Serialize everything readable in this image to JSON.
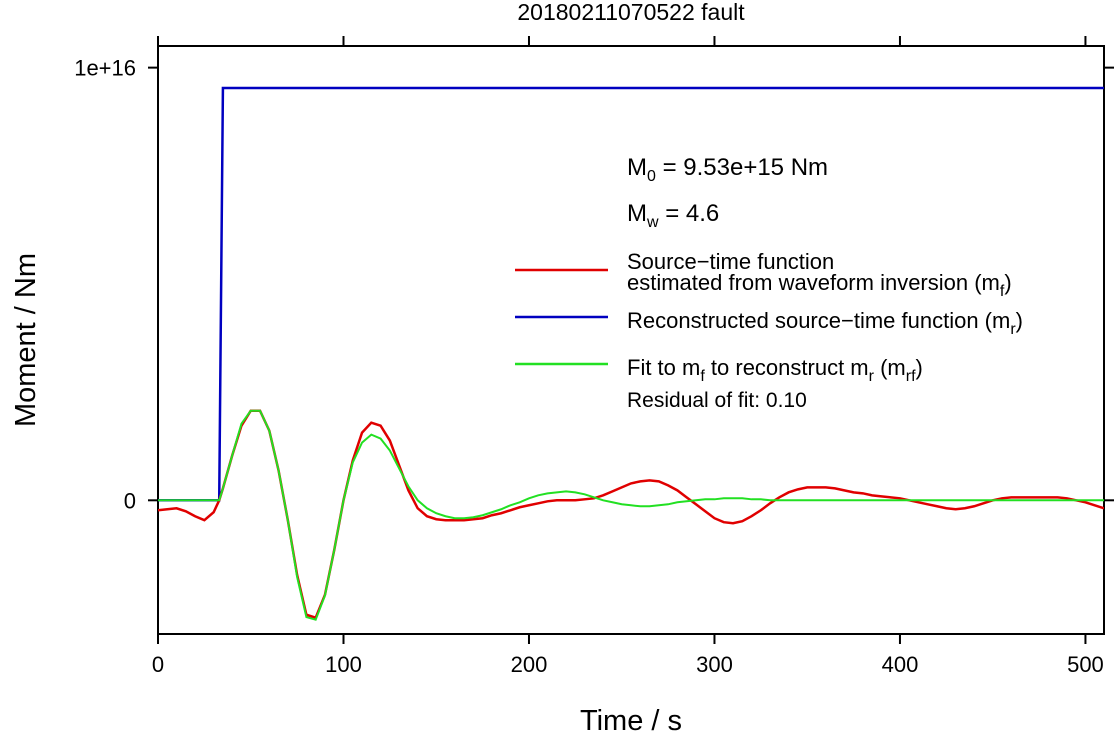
{
  "chart_data": {
    "type": "line",
    "title": "20180211070522 fault",
    "xlabel": "Time / s",
    "ylabel": "Moment / Nm",
    "xlim": [
      0,
      510
    ],
    "ylim": [
      -3090000000000000.0,
      1.05e+16
    ],
    "xticks": [
      0,
      100,
      200,
      300,
      400,
      500
    ],
    "yticks": [
      0,
      {
        "value": 1e+16,
        "label": "1e+16"
      }
    ],
    "annotations": [
      [
        "M",
        "0",
        " = 9.53e+15 Nm"
      ],
      [
        "M",
        "w",
        " = 4.6"
      ],
      [
        "Residual of fit: 0.10"
      ]
    ],
    "x": [
      0,
      5,
      10,
      15,
      20,
      25,
      30,
      33,
      35,
      40,
      45,
      50,
      55,
      60,
      65,
      70,
      75,
      80,
      85,
      90,
      95,
      100,
      105,
      110,
      115,
      120,
      125,
      130,
      135,
      140,
      145,
      150,
      155,
      160,
      165,
      170,
      175,
      180,
      185,
      190,
      195,
      200,
      205,
      210,
      215,
      220,
      225,
      230,
      235,
      240,
      245,
      250,
      255,
      260,
      265,
      270,
      275,
      280,
      285,
      290,
      295,
      300,
      305,
      310,
      315,
      320,
      325,
      330,
      335,
      340,
      345,
      350,
      355,
      360,
      365,
      370,
      375,
      380,
      385,
      390,
      395,
      400,
      405,
      410,
      415,
      420,
      425,
      430,
      435,
      440,
      445,
      450,
      455,
      460,
      465,
      470,
      475,
      480,
      485,
      490,
      495,
      500,
      505,
      510
    ],
    "series": [
      {
        "name": [
          [
            "Reconstructed source−time function (m",
            "r",
            ")"
          ]
        ],
        "color": "#0000c0",
        "values": [
          0,
          0,
          0,
          0,
          0,
          0,
          0,
          0,
          9530000000000000.0,
          9530000000000000.0,
          9530000000000000.0,
          9530000000000000.0,
          9530000000000000.0,
          9530000000000000.0,
          9530000000000000.0,
          9530000000000000.0,
          9530000000000000.0,
          9530000000000000.0,
          9530000000000000.0,
          9530000000000000.0,
          9530000000000000.0,
          9530000000000000.0,
          9530000000000000.0,
          9530000000000000.0,
          9530000000000000.0,
          9530000000000000.0,
          9530000000000000.0,
          9530000000000000.0,
          9530000000000000.0,
          9530000000000000.0,
          9530000000000000.0,
          9530000000000000.0,
          9530000000000000.0,
          9530000000000000.0,
          9530000000000000.0,
          9530000000000000.0,
          9530000000000000.0,
          9530000000000000.0,
          9530000000000000.0,
          9530000000000000.0,
          9530000000000000.0,
          9530000000000000.0,
          9530000000000000.0,
          9530000000000000.0,
          9530000000000000.0,
          9530000000000000.0,
          9530000000000000.0,
          9530000000000000.0,
          9530000000000000.0,
          9530000000000000.0,
          9530000000000000.0,
          9530000000000000.0,
          9530000000000000.0,
          9530000000000000.0,
          9530000000000000.0,
          9530000000000000.0,
          9530000000000000.0,
          9530000000000000.0,
          9530000000000000.0,
          9530000000000000.0,
          9530000000000000.0,
          9530000000000000.0,
          9530000000000000.0,
          9530000000000000.0,
          9530000000000000.0,
          9530000000000000.0,
          9530000000000000.0,
          9530000000000000.0,
          9530000000000000.0,
          9530000000000000.0,
          9530000000000000.0,
          9530000000000000.0,
          9530000000000000.0,
          9530000000000000.0,
          9530000000000000.0,
          9530000000000000.0,
          9530000000000000.0,
          9530000000000000.0,
          9530000000000000.0,
          9530000000000000.0,
          9530000000000000.0,
          9530000000000000.0,
          9530000000000000.0,
          9530000000000000.0,
          9530000000000000.0,
          9530000000000000.0,
          9530000000000000.0,
          9530000000000000.0,
          9530000000000000.0,
          9530000000000000.0,
          9530000000000000.0,
          9530000000000000.0,
          9530000000000000.0,
          9530000000000000.0,
          9530000000000000.0,
          9530000000000000.0,
          9530000000000000.0,
          9530000000000000.0,
          9530000000000000.0,
          9530000000000000.0,
          9530000000000000.0,
          9530000000000000.0,
          9530000000000000.0,
          9530000000000000.0
        ]
      },
      {
        "name": [
          [
            "Source−time function"
          ],
          [
            "estimated from waveform inversion (m",
            "f",
            ")"
          ]
        ],
        "color": "#e00000",
        "values": [
          -230000000000000.0,
          -207000000000000.0,
          -184000000000000.0,
          -253000000000000.0,
          -368000000000000.0,
          -460000000000000.0,
          -276000000000000.0,
          0,
          276000000000000.0,
          1035000000000000.0,
          1725000000000000.0,
          2070000000000000.0,
          2070000000000000.0,
          1610000000000000.0,
          690000000000000.0,
          -460000000000000.0,
          -1725000000000000.0,
          -2645000000000000.0,
          -2714000000000000.0,
          -2185000000000000.0,
          -1150000000000000.0,
          0,
          920000000000000.0,
          1564000000000000.0,
          1794000000000000.0,
          1725000000000000.0,
          1380000000000000.0,
          805000000000000.0,
          230000000000000.0,
          -184000000000000.0,
          -368000000000000.0,
          -437000000000000.0,
          -460000000000000.0,
          -460000000000000.0,
          -460000000000000.0,
          -437000000000000.0,
          -414000000000000.0,
          -345000000000000.0,
          -299000000000000.0,
          -230000000000000.0,
          -161000000000000.0,
          -115000000000000.0,
          -69000000000000.0,
          -23000000000000.0,
          0,
          0,
          0,
          23000000000000.0,
          46000000000000.0,
          115000000000000.0,
          207000000000000.0,
          299000000000000.0,
          391000000000000.0,
          437000000000000.0,
          460000000000000.0,
          437000000000000.0,
          345000000000000.0,
          230000000000000.0,
          69000000000000.0,
          -92000000000000.0,
          -253000000000000.0,
          -414000000000000.0,
          -506000000000000.0,
          -529000000000000.0,
          -483000000000000.0,
          -368000000000000.0,
          -230000000000000.0,
          -69000000000000.0,
          69000000000000.0,
          184000000000000.0,
          253000000000000.0,
          299000000000000.0,
          299000000000000.0,
          299000000000000.0,
          276000000000000.0,
          230000000000000.0,
          184000000000000.0,
          161000000000000.0,
          115000000000000.0,
          92000000000000.0,
          69000000000000.0,
          46000000000000.0,
          0,
          -46000000000000.0,
          -92000000000000.0,
          -138000000000000.0,
          -184000000000000.0,
          -207000000000000.0,
          -184000000000000.0,
          -138000000000000.0,
          -69000000000000.0,
          0,
          46000000000000.0,
          69000000000000.0,
          69000000000000.0,
          69000000000000.0,
          69000000000000.0,
          69000000000000.0,
          69000000000000.0,
          46000000000000.0,
          0,
          -46000000000000.0,
          -115000000000000.0,
          -184000000000000.0
        ]
      },
      {
        "name": [
          [
            "Fit to m",
            "f",
            " to reconstruct m",
            "r",
            " (m",
            "rf",
            ")"
          ]
        ],
        "color": "#22e022",
        "values": [
          0,
          0,
          0,
          0,
          0,
          0,
          0,
          0,
          276000000000000.0,
          1035000000000000.0,
          1770000000000000.0,
          2070000000000000.0,
          2070000000000000.0,
          1610000000000000.0,
          690000000000000.0,
          -460000000000000.0,
          -1770000000000000.0,
          -2700000000000000.0,
          -2760000000000000.0,
          -2200000000000000.0,
          -1150000000000000.0,
          0,
          874000000000000.0,
          1334000000000000.0,
          1518000000000000.0,
          1426000000000000.0,
          1150000000000000.0,
          736000000000000.0,
          322000000000000.0,
          0,
          -184000000000000.0,
          -299000000000000.0,
          -368000000000000.0,
          -414000000000000.0,
          -414000000000000.0,
          -391000000000000.0,
          -345000000000000.0,
          -276000000000000.0,
          -207000000000000.0,
          -115000000000000.0,
          -46000000000000.0,
          46000000000000.0,
          115000000000000.0,
          161000000000000.0,
          184000000000000.0,
          207000000000000.0,
          184000000000000.0,
          138000000000000.0,
          69000000000000.0,
          0,
          -46000000000000.0,
          -92000000000000.0,
          -115000000000000.0,
          -138000000000000.0,
          -138000000000000.0,
          -115000000000000.0,
          -92000000000000.0,
          -46000000000000.0,
          -23000000000000.0,
          0,
          23000000000000.0,
          23000000000000.0,
          46000000000000.0,
          46000000000000.0,
          46000000000000.0,
          23000000000000.0,
          23000000000000.0,
          0,
          0,
          0,
          0,
          0,
          0,
          0,
          0,
          0,
          0,
          0,
          0,
          0,
          0,
          0,
          0,
          0,
          0,
          0,
          0,
          0,
          0,
          0,
          0,
          0,
          0,
          0,
          0,
          0,
          0,
          0,
          0,
          0,
          0,
          0,
          0,
          0
        ]
      }
    ]
  }
}
